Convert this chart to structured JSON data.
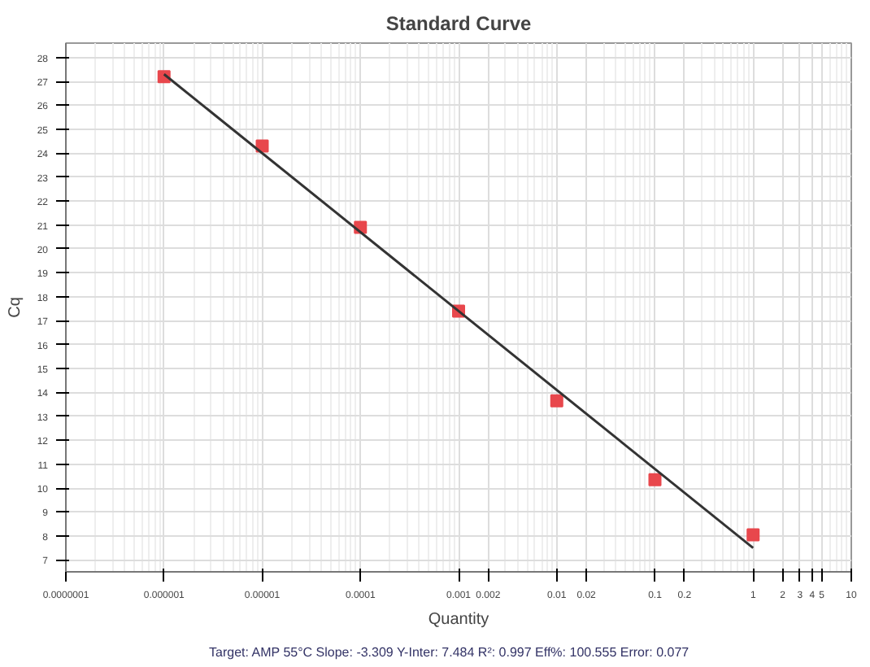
{
  "chart_data": {
    "type": "scatter",
    "title": "Standard Curve",
    "xlabel": "Quantity",
    "ylabel": "Cq",
    "log": "x",
    "grid": true,
    "marker": "square",
    "xlim": [
      1e-07,
      10
    ],
    "xticks": [
      {
        "value": 1e-07,
        "label": "0.0000001"
      },
      {
        "value": 1e-06,
        "label": "0.000001"
      },
      {
        "value": 1e-05,
        "label": "0.00001"
      },
      0.0001,
      0.001,
      0.002,
      0.01,
      0.02,
      0.1,
      0.2,
      1,
      2,
      3,
      4,
      5,
      10
    ],
    "ylim": [
      6.5,
      28.6
    ],
    "yticks": [
      7,
      8,
      9,
      10,
      11,
      12,
      13,
      14,
      15,
      16,
      17,
      18,
      19,
      20,
      21,
      22,
      23,
      24,
      25,
      26,
      27,
      28
    ],
    "series": [
      {
        "color": "#e8474c",
        "x": [
          1e-06,
          1e-05,
          0.0001,
          0.001,
          0.01,
          0.1,
          1
        ],
        "values": [
          27.2,
          24.3,
          20.9,
          17.4,
          13.65,
          10.35,
          8.05
        ]
      },
      {
        "type": "line",
        "color": "#333333",
        "marker": "none",
        "x": [
          1e-06,
          1
        ],
        "values": [
          27.3,
          7.5
        ]
      }
    ],
    "annotations": [
      "Target: AMP 55°C  Slope: -3.309  Y-Inter: 7.484  R²: 0.997  Eff%: 100.555  Error: 0.077"
    ]
  }
}
